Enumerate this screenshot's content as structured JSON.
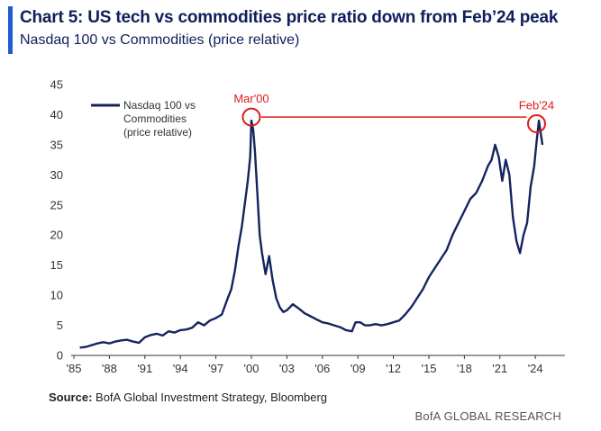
{
  "header": {
    "title": "Chart 5: US tech vs commodities price ratio down from Feb’24 peak",
    "subtitle": "Nasdaq 100 vs Commodities (price relative)"
  },
  "footer": {
    "source_label": "Source:",
    "source_text": " BofA Global Investment Strategy, Bloomberg",
    "brand": "BofA GLOBAL RESEARCH"
  },
  "colors": {
    "series": "#14245e",
    "annotation": "#e11919",
    "accent": "#1f5bd6"
  },
  "chart_data": {
    "type": "line",
    "title": "",
    "xlabel": "",
    "ylabel": "",
    "ylim": [
      0,
      45
    ],
    "xlim": [
      1985,
      2026.5
    ],
    "yticks": [
      0,
      5,
      10,
      15,
      20,
      25,
      30,
      35,
      40,
      45
    ],
    "xticks": [
      {
        "value": 1985,
        "label": "'85"
      },
      {
        "value": 1988,
        "label": "'88"
      },
      {
        "value": 1991,
        "label": "'91"
      },
      {
        "value": 1994,
        "label": "'94"
      },
      {
        "value": 1997,
        "label": "'97"
      },
      {
        "value": 2000,
        "label": "'00"
      },
      {
        "value": 2003,
        "label": "'03"
      },
      {
        "value": 2006,
        "label": "'06"
      },
      {
        "value": 2009,
        "label": "'09"
      },
      {
        "value": 2012,
        "label": "'12"
      },
      {
        "value": 2015,
        "label": "'15"
      },
      {
        "value": 2018,
        "label": "'18"
      },
      {
        "value": 2021,
        "label": "'21"
      },
      {
        "value": 2024,
        "label": "'24"
      }
    ],
    "legend_position": "top-left",
    "series": [
      {
        "name": "Nasdaq 100 vs\nCommodities\n(price relative)",
        "x": [
          1985.5,
          1986,
          1986.5,
          1987,
          1987.5,
          1988,
          1988.5,
          1989,
          1989.5,
          1990,
          1990.5,
          1991,
          1991.5,
          1992,
          1992.5,
          1993,
          1993.5,
          1994,
          1994.5,
          1995,
          1995.5,
          1996,
          1996.5,
          1997,
          1997.5,
          1998,
          1998.3,
          1998.6,
          1998.9,
          1999.2,
          1999.5,
          1999.7,
          1999.9,
          2000.0,
          2000.15,
          2000.3,
          2000.5,
          2000.7,
          2000.9,
          2001.2,
          2001.5,
          2001.8,
          2002.1,
          2002.4,
          2002.7,
          2003.0,
          2003.5,
          2004,
          2004.5,
          2005,
          2005.5,
          2006,
          2006.5,
          2007,
          2007.5,
          2008,
          2008.5,
          2008.8,
          2009.2,
          2009.6,
          2010,
          2010.5,
          2011,
          2011.5,
          2012,
          2012.5,
          2013,
          2013.5,
          2014,
          2014.5,
          2015,
          2015.5,
          2016,
          2016.5,
          2017,
          2017.5,
          2018,
          2018.5,
          2019,
          2019.5,
          2020,
          2020.3,
          2020.6,
          2020.9,
          2021.2,
          2021.5,
          2021.8,
          2022.1,
          2022.4,
          2022.7,
          2023.0,
          2023.3,
          2023.6,
          2023.9,
          2024.1,
          2024.3,
          2024.6
        ],
        "y": [
          1.3,
          1.4,
          1.7,
          2.0,
          2.2,
          2.0,
          2.3,
          2.5,
          2.6,
          2.3,
          2.1,
          3.0,
          3.4,
          3.6,
          3.3,
          4.0,
          3.8,
          4.2,
          4.3,
          4.6,
          5.5,
          5.0,
          5.8,
          6.2,
          6.8,
          9.5,
          11.0,
          14.0,
          18.0,
          21.5,
          26.0,
          29.0,
          33.0,
          39.0,
          37.5,
          34.0,
          27.0,
          20.0,
          17.0,
          13.5,
          16.5,
          12.5,
          9.5,
          8.0,
          7.2,
          7.5,
          8.5,
          7.8,
          7.0,
          6.5,
          6.0,
          5.5,
          5.3,
          5.0,
          4.7,
          4.2,
          4.0,
          5.5,
          5.5,
          5.0,
          5.0,
          5.2,
          5.0,
          5.2,
          5.5,
          5.8,
          6.8,
          8.0,
          9.5,
          11.0,
          13.0,
          14.5,
          16.0,
          17.5,
          20.0,
          22.0,
          24.0,
          26.0,
          27.0,
          29.0,
          31.5,
          32.5,
          35.0,
          33.0,
          29.0,
          32.5,
          30.0,
          23.0,
          19.0,
          17.0,
          20.0,
          22.0,
          28.0,
          31.5,
          35.5,
          39.0,
          35.0
        ]
      }
    ],
    "annotations": [
      {
        "label": "Mar'00",
        "x": 2000.0,
        "y": 39.6
      },
      {
        "label": "Feb'24",
        "x": 2024.1,
        "y": 38.5
      }
    ]
  }
}
